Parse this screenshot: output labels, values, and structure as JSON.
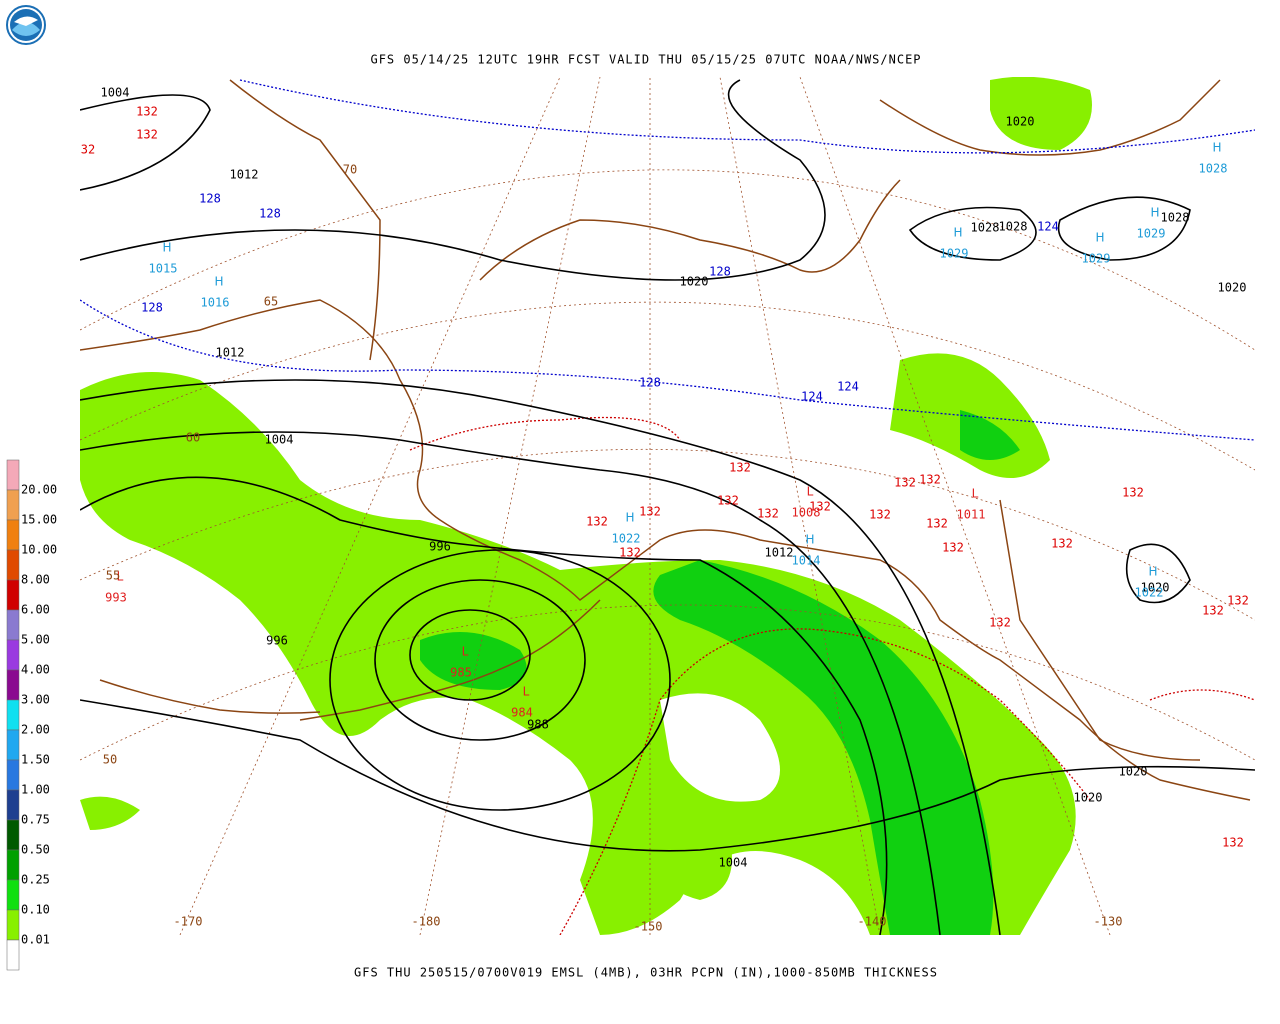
{
  "header": {
    "title": "GFS 05/14/25 12UTC 19HR FCST VALID THU 05/15/25 07UTC NOAA/NWS/NCEP"
  },
  "footer": {
    "caption": "GFS THU 250515/0700V019 EMSL (4MB), 03HR PCPN (IN),1000-850MB THICKNESS"
  },
  "legend": {
    "labels": [
      "20.00",
      "15.00",
      "10.00",
      "8.00",
      "6.00",
      "5.00",
      "4.00",
      "3.00",
      "2.00",
      "1.50",
      "1.00",
      "0.75",
      "0.50",
      "0.25",
      "0.10",
      "0.01"
    ],
    "colors": [
      "#f4a9b8",
      "#f0a050",
      "#f08010",
      "#e04a00",
      "#d00000",
      "#8a7ad0",
      "#9a3ae0",
      "#8a0a90",
      "#10e0f0",
      "#20a8f0",
      "#2878e0",
      "#1e3f90",
      "#005a00",
      "#00a000",
      "#10e010",
      "#88f000",
      "#ffffff"
    ]
  },
  "map": {
    "isobar_labels": [
      "1004",
      "1012",
      "1012",
      "1004",
      "996",
      "996",
      "988",
      "1004",
      "1020",
      "1020",
      "1028",
      "1028",
      "1028",
      "1020",
      "1012",
      "1020",
      "1020",
      "1020"
    ],
    "centers": [
      {
        "symbol": "H",
        "value": "1015"
      },
      {
        "symbol": "H",
        "value": "1016"
      },
      {
        "symbol": "H",
        "value": "1029"
      },
      {
        "symbol": "H",
        "value": "1029"
      },
      {
        "symbol": "H",
        "value": "1029"
      },
      {
        "symbol": "H",
        "value": "1028"
      },
      {
        "symbol": "H",
        "value": "1022"
      },
      {
        "symbol": "H",
        "value": "1014"
      },
      {
        "symbol": "H",
        "value": "1022"
      },
      {
        "symbol": "L",
        "value": "993"
      },
      {
        "symbol": "L",
        "value": "985"
      },
      {
        "symbol": "L",
        "value": "984"
      },
      {
        "symbol": "L",
        "value": "1011"
      },
      {
        "symbol": "L",
        "value": "1008"
      }
    ],
    "thickness_labels": {
      "blue": [
        "128",
        "128",
        "128",
        "128",
        "128",
        "124",
        "124",
        "124"
      ],
      "red": [
        "132",
        "132",
        "32",
        "132",
        "132",
        "132",
        "132",
        "132",
        "132",
        "132",
        "132",
        "132",
        "132",
        "132",
        "132",
        "132",
        "132",
        "132",
        "132",
        "132",
        "132"
      ]
    },
    "latitude_labels": [
      "70",
      "65",
      "60",
      "55",
      "50"
    ],
    "longitude_labels": [
      "-170",
      "-180",
      "-150",
      "-140",
      "-130"
    ]
  }
}
